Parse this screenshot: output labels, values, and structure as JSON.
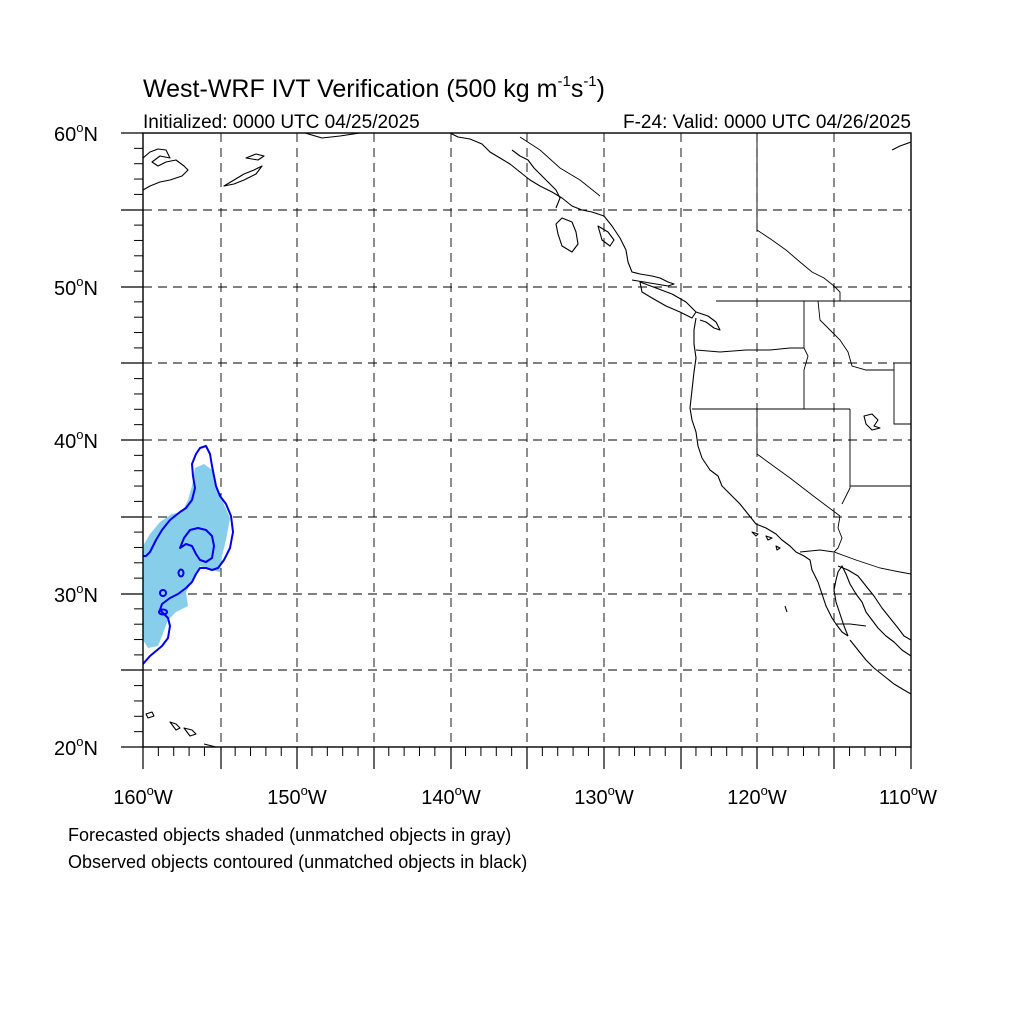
{
  "title": {
    "main": "West-WRF IVT Verification (500 kg m",
    "sup1": "-1",
    "s": "s",
    "sup2": "-1",
    "close": ")"
  },
  "initialized": "Initialized: 0000 UTC 04/25/2025",
  "valid": "F-24: Valid: 0000 UTC 04/26/2025",
  "lat_labels": [
    {
      "deg": "60",
      "unit": "o",
      "hem": "N"
    },
    {
      "deg": "50",
      "unit": "o",
      "hem": "N"
    },
    {
      "deg": "40",
      "unit": "o",
      "hem": "N"
    },
    {
      "deg": "30",
      "unit": "o",
      "hem": "N"
    },
    {
      "deg": "20",
      "unit": "o",
      "hem": "N"
    }
  ],
  "lon_labels": [
    {
      "deg": "160",
      "unit": "o",
      "hem": "W"
    },
    {
      "deg": "150",
      "unit": "o",
      "hem": "W"
    },
    {
      "deg": "140",
      "unit": "o",
      "hem": "W"
    },
    {
      "deg": "130",
      "unit": "o",
      "hem": "W"
    },
    {
      "deg": "120",
      "unit": "o",
      "hem": "W"
    },
    {
      "deg": "110",
      "unit": "o",
      "hem": "W"
    }
  ],
  "notes": {
    "forecast": "Forecasted objects shaded (unmatched objects in gray)",
    "observed": "Observed objects contoured (unmatched objects in black)"
  },
  "map_extent": {
    "lon_min": -160,
    "lon_max": -110,
    "lat_min": 20,
    "lat_max": 60
  },
  "colors": {
    "forecast_fill": "#87ceeb",
    "observed_contour": "#0000ee",
    "lines": "#000000"
  }
}
